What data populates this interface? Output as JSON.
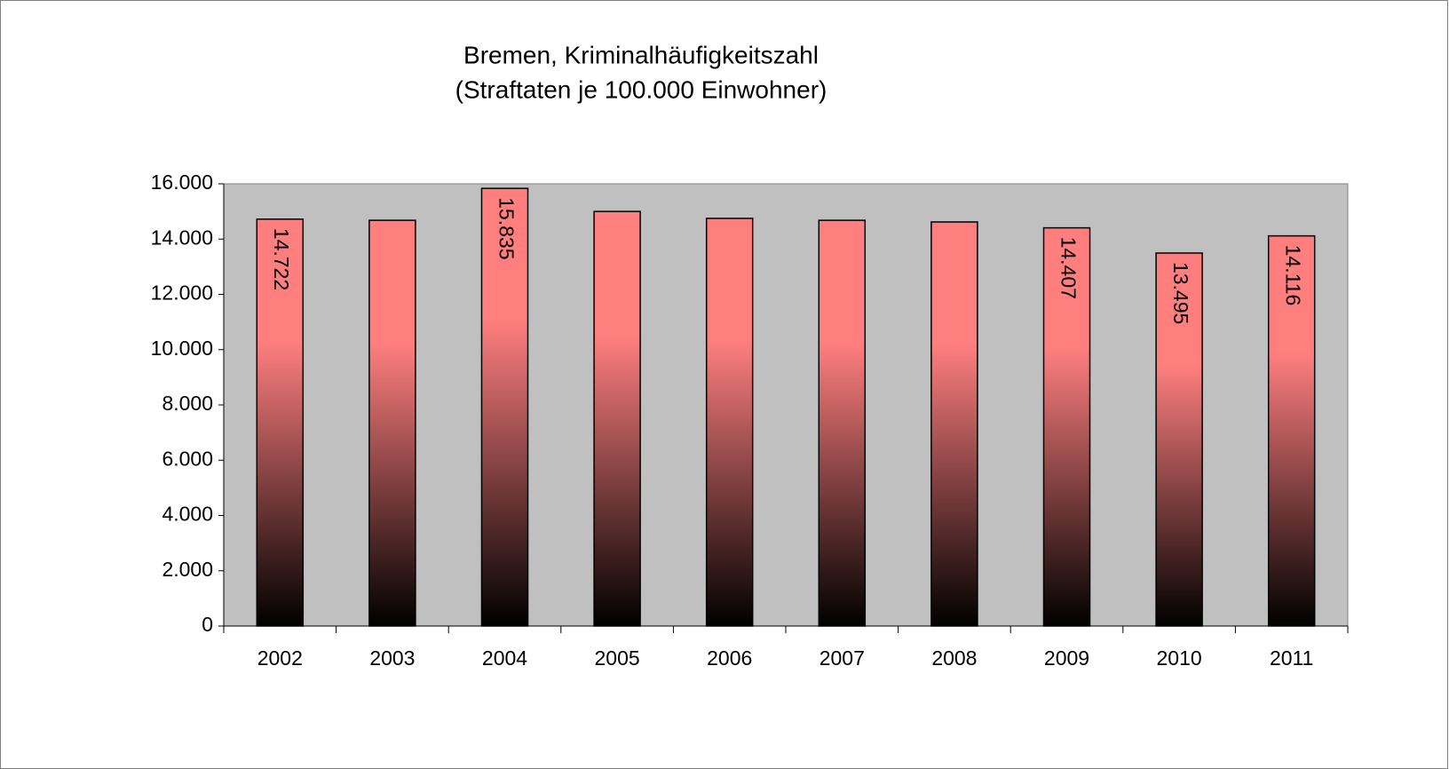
{
  "chart_data": {
    "type": "bar",
    "title": "Bremen,  Kriminalhäufigkeitszahl",
    "subtitle": "(Straftaten je 100.000 Einwohner)",
    "categories": [
      "2002",
      "2003",
      "2004",
      "2005",
      "2006",
      "2007",
      "2008",
      "2009",
      "2010",
      "2011"
    ],
    "values": [
      14722,
      14680,
      15835,
      15000,
      14750,
      14680,
      14620,
      14407,
      13495,
      14116
    ],
    "value_labels": [
      "14.722",
      null,
      "15.835",
      null,
      null,
      null,
      null,
      "14.407",
      "13.495",
      "14.116"
    ],
    "color": "#ff7f7f",
    "ylim": [
      0,
      16000
    ],
    "yticks": [
      0,
      {
        "value": 2000,
        "label": "2.000"
      },
      {
        "value": 4000,
        "label": "4.000"
      },
      {
        "value": 6000,
        "label": "6.000"
      },
      {
        "value": 8000,
        "label": "8.000"
      },
      {
        "value": 10000,
        "label": "10.000"
      },
      {
        "value": 12000,
        "label": "12.000"
      },
      {
        "value": 14000,
        "label": "14.000"
      },
      {
        "value": 16000,
        "label": "16.000"
      }
    ],
    "grid": false
  }
}
